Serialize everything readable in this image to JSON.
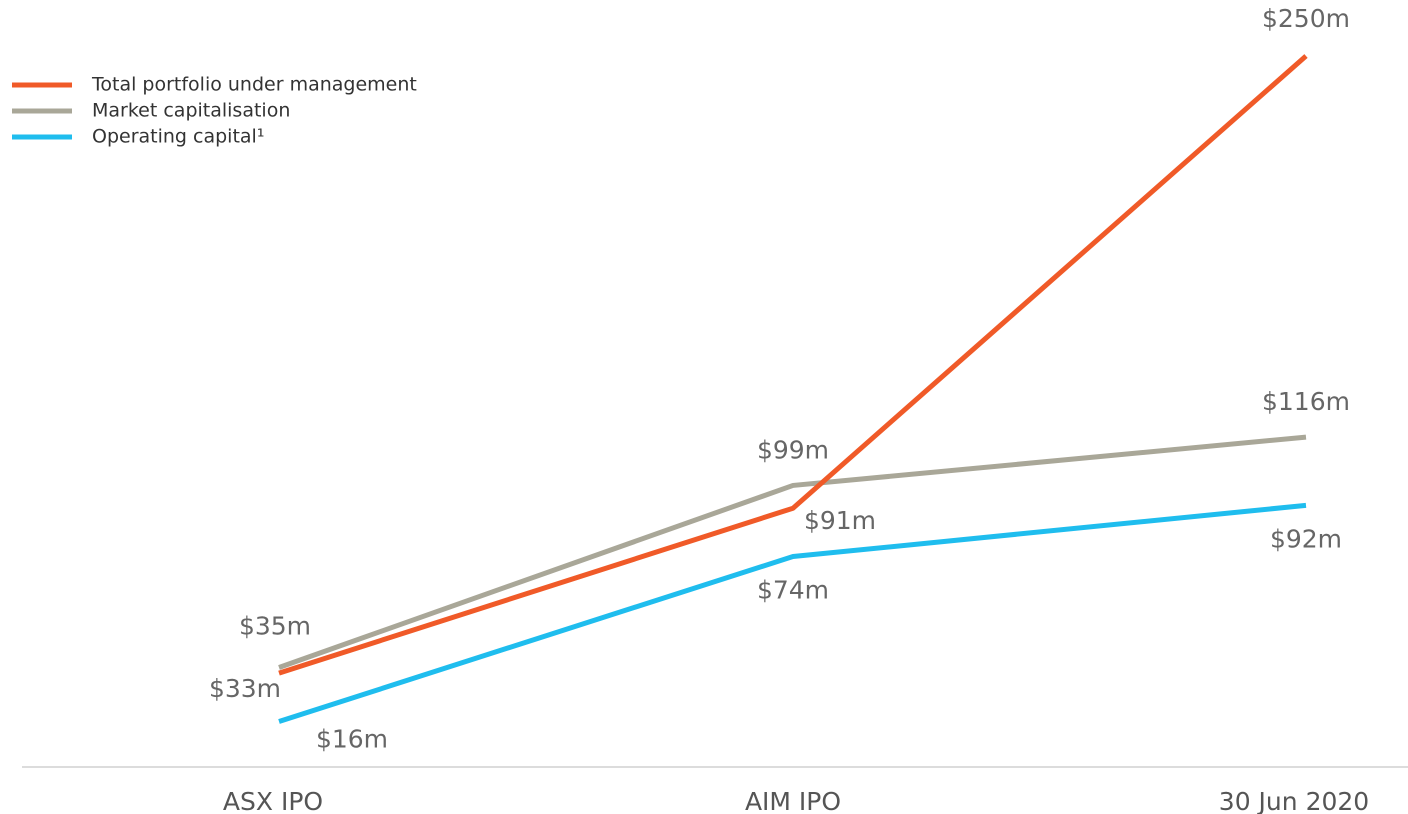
{
  "chart_data": {
    "type": "line",
    "categories": [
      "ASX IPO",
      "AIM IPO",
      "30 Jun 2020"
    ],
    "ylim": [
      0,
      250
    ],
    "series": [
      {
        "name": "Total portfolio under management",
        "color": "#f05a28",
        "values": [
          33,
          91,
          250
        ],
        "value_labels": [
          "$33m",
          "$91m",
          "$250m"
        ]
      },
      {
        "name": "Market capitalisation",
        "color": "#a9a798",
        "values": [
          35,
          99,
          116
        ],
        "value_labels": [
          "$35m",
          "$99m",
          "$116m"
        ]
      },
      {
        "name": "Operating capital¹",
        "color": "#1fbdee",
        "values": [
          16,
          74,
          92
        ],
        "value_labels": [
          "$16m",
          "$74m",
          "$92m"
        ]
      }
    ]
  }
}
